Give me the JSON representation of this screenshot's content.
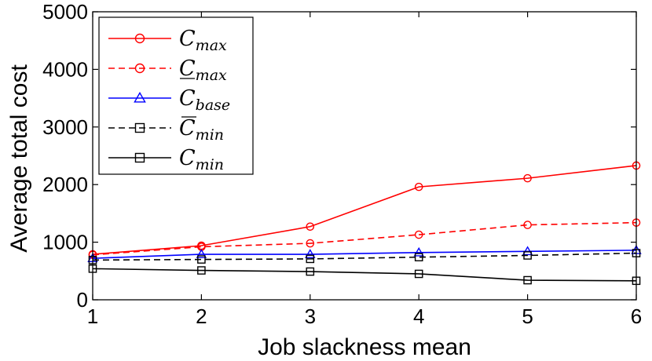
{
  "chart_data": {
    "type": "line",
    "title": "",
    "xlabel": "Job slackness mean",
    "ylabel": "Average total cost",
    "x": [
      1,
      2,
      3,
      4,
      5,
      6
    ],
    "xlim": [
      1,
      6
    ],
    "ylim": [
      0,
      5000
    ],
    "x_ticks": [
      "1",
      "2",
      "3",
      "4",
      "5",
      "6"
    ],
    "y_ticks": [
      "0",
      "1000",
      "2000",
      "3000",
      "4000",
      "5000"
    ],
    "grid": false,
    "legend_position": "top-left",
    "series": [
      {
        "name": "Cmax",
        "label_main": "C",
        "label_sub": "max",
        "accent": "none",
        "color": "#ff0000",
        "dash": "solid",
        "marker": "circle",
        "values": [
          790,
          940,
          1270,
          1960,
          2110,
          2330
        ]
      },
      {
        "name": "C_max (lower bar)",
        "label_main": "C",
        "label_sub": "max",
        "accent": "underline",
        "color": "#ff0000",
        "dash": "dashed",
        "marker": "circle",
        "values": [
          780,
          920,
          980,
          1130,
          1300,
          1340
        ]
      },
      {
        "name": "Cbase",
        "label_main": "C",
        "label_sub": "base",
        "accent": "none",
        "color": "#0000ff",
        "dash": "solid",
        "marker": "triangle",
        "values": [
          720,
          790,
          790,
          820,
          840,
          860
        ]
      },
      {
        "name": "C_min (upper bar)",
        "label_main": "C",
        "label_sub": "min",
        "accent": "overline",
        "color": "#000000",
        "dash": "dashed",
        "marker": "square",
        "values": [
          690,
          700,
          710,
          740,
          770,
          810
        ]
      },
      {
        "name": "Cmin",
        "label_main": "C",
        "label_sub": "min",
        "accent": "none",
        "color": "#000000",
        "dash": "solid",
        "marker": "square",
        "values": [
          540,
          510,
          490,
          450,
          340,
          330
        ]
      }
    ]
  }
}
